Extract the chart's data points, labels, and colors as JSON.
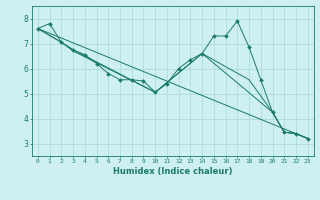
{
  "xlabel": "Humidex (Indice chaleur)",
  "bg_color": "#cef0f0",
  "grid_color": "#aad8d8",
  "line_color": "#1a7a6e",
  "xlim": [
    -0.5,
    23.5
  ],
  "ylim": [
    2.5,
    8.5
  ],
  "yticks": [
    3,
    4,
    5,
    6,
    7,
    8
  ],
  "xticks": [
    0,
    1,
    2,
    3,
    4,
    5,
    6,
    7,
    8,
    9,
    10,
    11,
    12,
    13,
    14,
    15,
    16,
    17,
    18,
    19,
    20,
    21,
    22,
    23
  ],
  "series": [
    {
      "x": [
        0,
        1,
        2,
        3,
        4,
        5,
        6,
        7,
        8,
        9,
        10,
        11,
        12,
        13,
        14,
        15,
        16,
        17,
        18,
        19,
        20,
        21,
        22,
        23
      ],
      "y": [
        7.6,
        7.8,
        7.05,
        6.75,
        6.55,
        6.2,
        5.8,
        5.55,
        5.55,
        5.5,
        5.05,
        5.4,
        6.0,
        6.35,
        6.6,
        7.3,
        7.3,
        7.9,
        6.85,
        5.55,
        4.25,
        3.45,
        3.4,
        3.2
      ],
      "markers": true
    },
    {
      "x": [
        0,
        23
      ],
      "y": [
        7.6,
        3.2
      ],
      "markers": false
    },
    {
      "x": [
        0,
        2,
        3,
        10,
        14,
        20,
        21,
        22,
        23
      ],
      "y": [
        7.6,
        7.05,
        6.75,
        5.05,
        6.6,
        4.25,
        3.45,
        3.4,
        3.2
      ],
      "markers": false
    },
    {
      "x": [
        0,
        2,
        3,
        10,
        14,
        18,
        20,
        21,
        22,
        23
      ],
      "y": [
        7.6,
        7.05,
        6.7,
        5.05,
        6.6,
        5.55,
        4.25,
        3.45,
        3.4,
        3.2
      ],
      "markers": false
    }
  ]
}
